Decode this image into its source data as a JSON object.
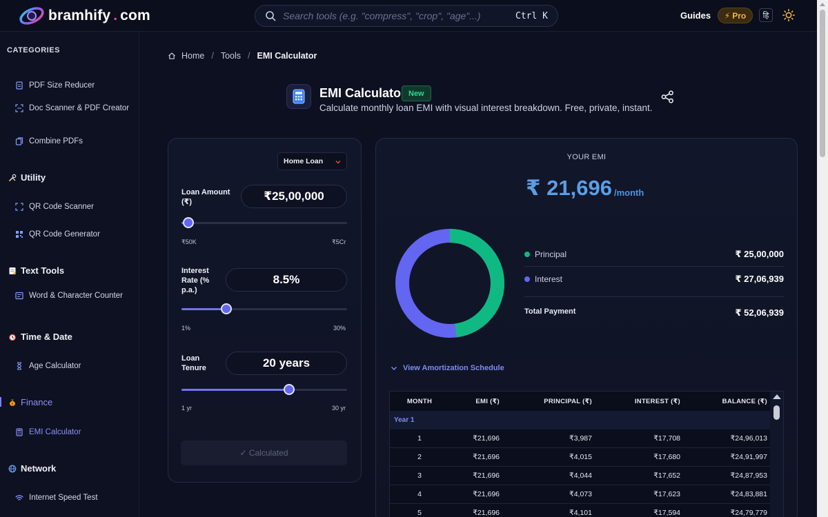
{
  "brand": {
    "name": "bramhify",
    "dot": ".",
    "tld": "com"
  },
  "search": {
    "placeholder": "Search tools (e.g. \"compress\", \"crop\", \"age\"...)",
    "shortcut": "Ctrl K"
  },
  "topnav": {
    "guides": "Guides",
    "pro": "Pro",
    "lang": "हि"
  },
  "sidebar": {
    "heading": "CATEGORIES",
    "pdf_items": [
      "PDF Size Reducer",
      "Doc Scanner & PDF Creator",
      "Combine PDFs"
    ],
    "groups": {
      "utility": "Utility",
      "text_tools": "Text Tools",
      "time_date": "Time & Date",
      "finance": "Finance",
      "network": "Network"
    },
    "utility_items": [
      "QR Code Scanner",
      "QR Code Generator"
    ],
    "text_items": [
      "Word & Character Counter"
    ],
    "time_items": [
      "Age Calculator"
    ],
    "finance_items": [
      "EMI Calculator"
    ],
    "network_items": [
      "Internet Speed Test"
    ]
  },
  "breadcrumb": {
    "home": "Home",
    "tools": "Tools",
    "current": "EMI Calculator"
  },
  "tool": {
    "title": "EMI Calculator",
    "badge": "New",
    "subtitle": "Calculate monthly loan EMI with visual interest breakdown. Free, private, instant."
  },
  "form": {
    "loan_type": "Home Loan",
    "loan_amount": {
      "label": "Loan Amount (₹)",
      "value": "₹25,00,000",
      "min": "₹50K",
      "max": "₹5Cr",
      "fraction": 0.04
    },
    "interest": {
      "label": "Interest Rate (% p.a.)",
      "value": "8.5%",
      "min": "1%",
      "max": "30%",
      "fraction": 0.27
    },
    "tenure": {
      "label": "Loan Tenure",
      "value": "20 years",
      "min": "1 yr",
      "max": "30 yr",
      "fraction": 0.65
    },
    "button": "✓ Calculated"
  },
  "result": {
    "heading": "YOUR EMI",
    "emi": "₹ 21,696",
    "per": "/month",
    "principal_label": "Principal",
    "principal": "₹ 25,00,000",
    "interest_label": "Interest",
    "interest": "₹ 27,06,939",
    "total_label": "Total Payment",
    "total": "₹ 52,06,939",
    "colors": {
      "principal": "#10b981",
      "interest": "#6366f1"
    },
    "principal_share": 0.48
  },
  "amortization": {
    "toggle": "View Amortization Schedule",
    "headers": [
      "MONTH",
      "EMI (₹)",
      "PRINCIPAL (₹)",
      "INTEREST (₹)",
      "BALANCE (₹)"
    ],
    "year_label": "Year 1",
    "rows": [
      [
        "1",
        "₹21,696",
        "₹3,987",
        "₹17,708",
        "₹24,96,013"
      ],
      [
        "2",
        "₹21,696",
        "₹4,015",
        "₹17,680",
        "₹24,91,997"
      ],
      [
        "3",
        "₹21,696",
        "₹4,044",
        "₹17,652",
        "₹24,87,953"
      ],
      [
        "4",
        "₹21,696",
        "₹4,073",
        "₹17,623",
        "₹24,83,881"
      ],
      [
        "5",
        "₹21,696",
        "₹4,101",
        "₹17,594",
        "₹24,79,779"
      ]
    ]
  }
}
